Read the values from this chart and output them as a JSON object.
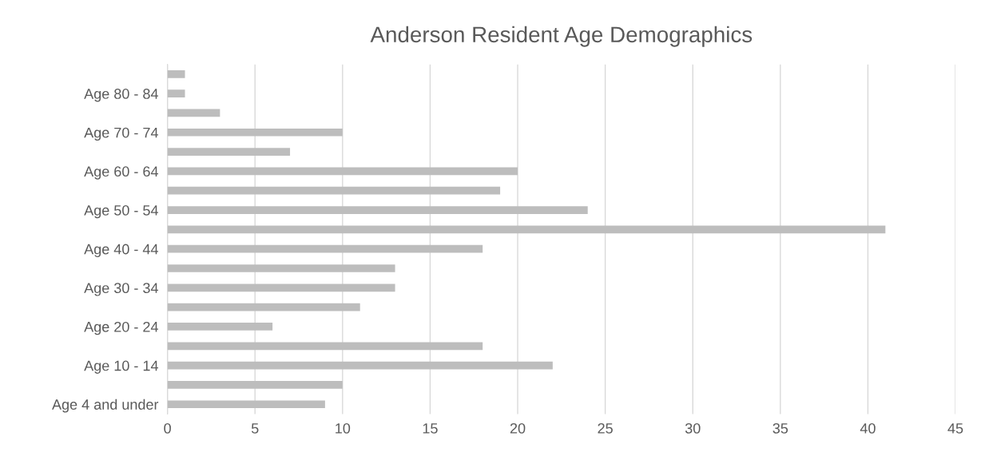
{
  "chart_data": {
    "type": "bar",
    "orientation": "horizontal",
    "title": "Anderson Resident Age Demographics",
    "categories": [
      null,
      "Age 80 - 84",
      null,
      "Age 70 - 74",
      null,
      "Age 60 - 64",
      null,
      "Age 50 - 54",
      null,
      "Age 40 - 44",
      null,
      "Age 30 - 34",
      null,
      "Age 20 - 24",
      null,
      "Age 10 - 14",
      null,
      "Age 4 and under"
    ],
    "values": [
      1,
      1,
      3,
      10,
      7,
      20,
      19,
      24,
      41,
      18,
      13,
      13,
      11,
      6,
      18,
      22,
      10,
      9
    ],
    "color": "#bdbdbd",
    "xlim": [
      0,
      45
    ],
    "xticks": [
      0,
      5,
      10,
      15,
      20,
      25,
      30,
      35,
      40,
      45
    ],
    "grid": "x",
    "legend": false
  }
}
